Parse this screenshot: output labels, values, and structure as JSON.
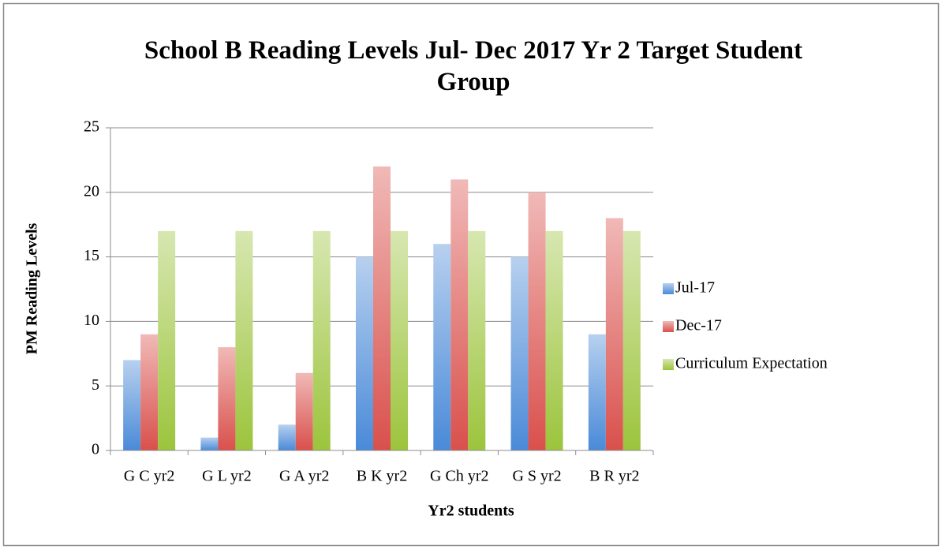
{
  "chart_data": {
    "type": "bar",
    "title": "School B Reading Levels Jul- Dec 2017 Yr 2 Target Student Group",
    "x_label": "Yr2 students",
    "y_label": "PM Reading Levels",
    "categories": [
      "G C yr2",
      "G L yr2",
      "G A yr2",
      "B K yr2",
      "G Ch yr2",
      "G S yr2",
      "B R yr2"
    ],
    "series": [
      {
        "name": "Jul-17",
        "color": "#4a8ad8",
        "values": [
          7,
          1,
          2,
          15,
          16,
          15,
          9
        ]
      },
      {
        "name": "Dec-17",
        "color": "#d9504c",
        "values": [
          9,
          8,
          6,
          22,
          21,
          20,
          18
        ]
      },
      {
        "name": "Curriculum Expectation",
        "color": "#9cc43c",
        "values": [
          17,
          17,
          17,
          17,
          17,
          17,
          17
        ]
      }
    ],
    "ylim": [
      0,
      25
    ],
    "yticks": [
      0,
      5,
      10,
      15,
      20,
      25
    ],
    "grid": true,
    "legend": "right"
  }
}
